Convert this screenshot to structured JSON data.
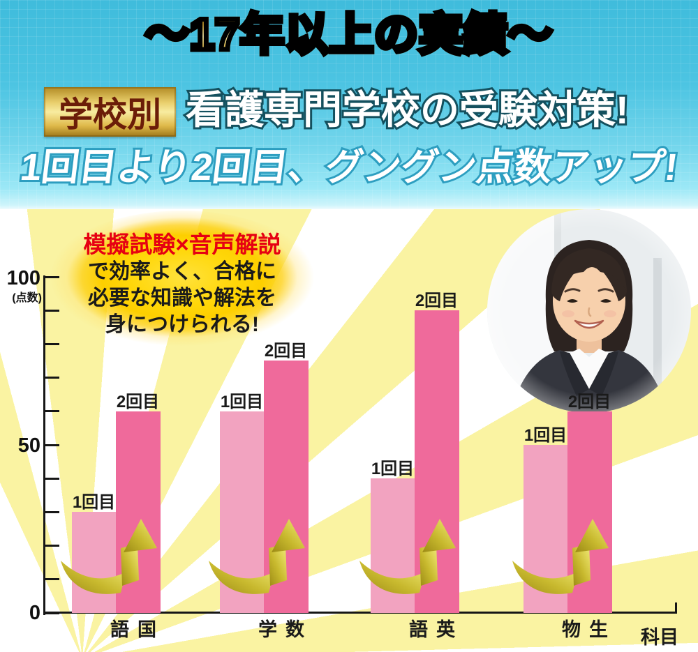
{
  "header": {
    "banner": "〜17年以上の実績〜",
    "badge": "学校別",
    "headline": "看護専門学校の受験対策!",
    "subheadline": "1回目より2回目、グングン点数アップ!"
  },
  "bubble": {
    "lines": [
      "模擬試験×音声解説",
      "で効率よく、合格に",
      "必要な知識や解法を",
      "身につけられる!"
    ]
  },
  "photo": {
    "alt": "笑顔の女性(スーツ姿)"
  },
  "chart_data": {
    "type": "bar",
    "title": "",
    "categories": [
      "国語",
      "数学",
      "英語",
      "生物"
    ],
    "series": [
      {
        "name": "1回目",
        "values": [
          30,
          60,
          40,
          50
        ]
      },
      {
        "name": "2回目",
        "values": [
          60,
          75,
          90,
          60
        ]
      }
    ],
    "xlabel": "科目",
    "ylabel": "(点数)",
    "ylim": [
      0,
      100
    ],
    "ytick_step": 10,
    "yticks_labeled": [
      0,
      50,
      100
    ],
    "legend": "none",
    "grid": false,
    "colors": {
      "series1": "#F2A3C0",
      "series2": "#EF6A9B",
      "arrow_dark": "#9c8a15",
      "arrow_light": "#efe98c",
      "ray": "#FAF3A2",
      "accent_red": "#e60012",
      "header_cyan": "#4cc4e2",
      "gold": "#d9b84f"
    }
  }
}
